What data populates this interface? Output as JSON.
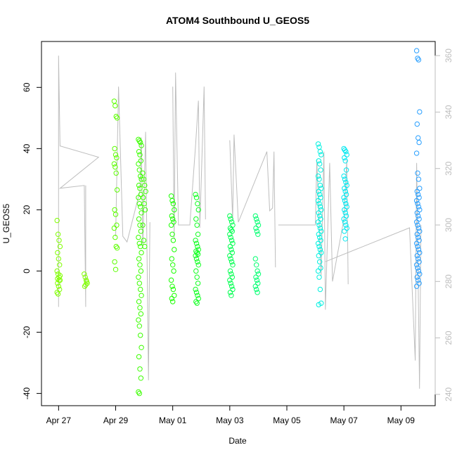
{
  "chart_data": {
    "type": "scatter",
    "title": "ATOM4 Southbound U_GEOS5",
    "xlabel": "Date",
    "ylabel": "U_GEOS5",
    "x_ticks": [
      "Apr 27",
      "Apr 29",
      "May 01",
      "May 03",
      "May 05",
      "May 07",
      "May 09"
    ],
    "y_ticks": [
      "-40",
      "-20",
      "0",
      "20",
      "40",
      "60"
    ],
    "y_right_ticks": [
      "240",
      "260",
      "280",
      "300",
      "320",
      "340",
      "360"
    ],
    "xlim": [
      "Apr 26 08:30",
      "May 10 05:00"
    ],
    "ylim": [
      -44,
      75
    ],
    "y_right_lim": [
      236,
      365
    ],
    "grid": false,
    "colors": {
      "line": "#bebebe",
      "series_start": "#7fff00",
      "series_mid": "#00ff7f",
      "series_late": "#00ffff",
      "series_end": "#1e90ff"
    },
    "note_axes": "Left axis: U_GEOS5 (points). Right axis (grey): secondary variable drawn as grey line; day 0 = Apr 27.",
    "series": [
      {
        "name": "U_GEOS5",
        "x_day": 0.0,
        "color": "#80ff00",
        "values": [
          16.5,
          12,
          10,
          8,
          6,
          4,
          2,
          0,
          -1,
          -2,
          -3,
          -4,
          -5,
          -6,
          -7,
          -7.5,
          -3,
          -1.5,
          -2.5
        ]
      },
      {
        "name": "U_GEOS5",
        "x_day": 0.95,
        "color": "#80ff00",
        "values": [
          -1,
          -2,
          -3,
          -4,
          -5,
          -4.5,
          -3.5
        ]
      },
      {
        "name": "U_GEOS5",
        "x_day": 2.0,
        "color": "#5cff00",
        "values": [
          55.5,
          54,
          50.5,
          50,
          40,
          38,
          37,
          35,
          34,
          32,
          26.5,
          20,
          18.5,
          15,
          14,
          11,
          8,
          7.5,
          3,
          0.5
        ]
      },
      {
        "name": "U_GEOS5",
        "x_day": 2.85,
        "color": "#3cff00",
        "values": [
          43,
          42.5,
          42,
          41,
          39,
          38,
          36,
          35,
          33,
          31,
          30,
          28,
          27,
          25,
          24,
          22,
          21,
          19,
          17,
          15,
          13,
          11,
          9,
          8,
          6,
          4,
          2,
          0,
          -2,
          -4,
          -6,
          -8,
          -10,
          -12,
          -14,
          -16,
          -18,
          -21,
          -25,
          -28,
          -32,
          -35,
          -39.5,
          -40
        ]
      },
      {
        "name": "U_GEOS5",
        "x_day": 3.0,
        "color": "#3cff00",
        "values": [
          32,
          30,
          28,
          26,
          24,
          22,
          20,
          15,
          10,
          8
        ]
      },
      {
        "name": "U_GEOS5",
        "x_day": 4.0,
        "color": "#1aff00",
        "values": [
          24.5,
          23,
          22,
          20,
          18,
          17,
          16,
          15,
          12,
          10,
          7,
          4,
          2,
          0,
          -3,
          -5,
          -6,
          -8,
          -9,
          -10
        ]
      },
      {
        "name": "U_GEOS5",
        "x_day": 4.85,
        "color": "#10ff20",
        "values": [
          25,
          24,
          22,
          20,
          17,
          15,
          12,
          10,
          9,
          8,
          7,
          6.5,
          6,
          5.5,
          5,
          4,
          3,
          2,
          0,
          -2,
          -4,
          -6,
          -7,
          -8,
          -9,
          -10,
          -10.5
        ]
      },
      {
        "name": "U_GEOS5",
        "x_day": 6.05,
        "color": "#00ff50",
        "values": [
          18,
          17,
          16,
          15,
          14,
          13.5,
          13,
          12,
          11,
          10,
          9,
          8,
          7,
          6,
          5,
          4,
          3,
          2,
          0,
          -1,
          -2,
          -3,
          -4,
          -5,
          -6,
          -7,
          -8
        ]
      },
      {
        "name": "U_GEOS5",
        "x_day": 6.95,
        "color": "#00ff70",
        "values": [
          18,
          17,
          16,
          15,
          14,
          13,
          12,
          4,
          2,
          0,
          -1,
          -2,
          -3,
          -4,
          -5,
          -6,
          -7
        ]
      },
      {
        "name": "U_GEOS5",
        "x_day": 9.15,
        "color": "#00f0e0",
        "values": [
          41.5,
          40.5,
          39,
          38,
          36,
          35,
          33,
          31,
          30,
          28,
          27,
          26,
          25,
          24,
          23,
          22,
          21,
          20,
          19,
          18,
          17,
          16,
          15,
          14,
          13,
          12,
          11,
          10,
          9,
          8,
          7,
          6,
          5,
          3,
          1,
          0,
          -2,
          -6,
          -10.5,
          -11
        ]
      },
      {
        "name": "U_GEOS5",
        "x_day": 10.05,
        "color": "#00e8f0",
        "values": [
          40,
          39.5,
          39,
          38,
          37,
          36,
          33,
          31,
          30,
          29,
          28,
          27,
          26,
          25,
          24,
          23,
          22,
          21,
          20,
          19,
          18,
          17,
          16,
          15,
          14,
          13,
          10.5
        ]
      },
      {
        "name": "U_GEOS5",
        "x_day": 12.6,
        "color": "#2aa0ff",
        "values": [
          72,
          69.5,
          69,
          52,
          48,
          43.5,
          42,
          38.5,
          32,
          30,
          27,
          26,
          25,
          24,
          23,
          22,
          21,
          20,
          19,
          18,
          17,
          16,
          15,
          14,
          13,
          12,
          11,
          10,
          9,
          8,
          7,
          6,
          5,
          4,
          3,
          2,
          1,
          0,
          -1,
          -2,
          -3,
          -4,
          -5
        ]
      }
    ]
  }
}
